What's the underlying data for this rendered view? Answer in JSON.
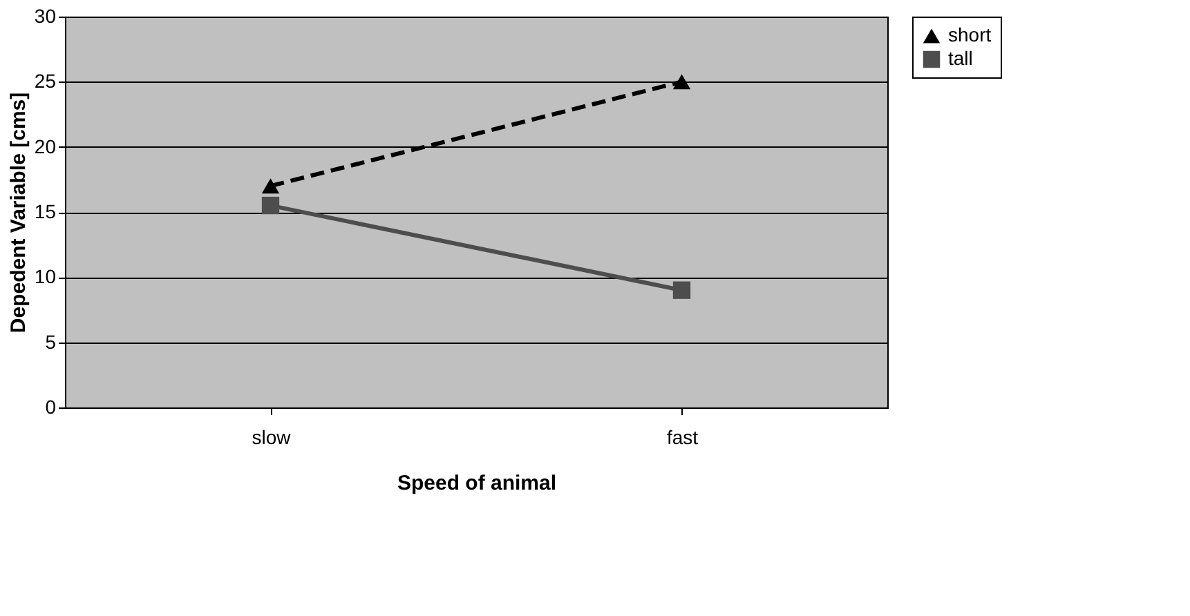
{
  "chart_data": {
    "type": "line",
    "xlabel": "Speed of animal",
    "ylabel": "Depedent Variable [cms]",
    "categories": [
      "slow",
      "fast"
    ],
    "series": [
      {
        "name": "short",
        "color": "#000000",
        "values": [
          17,
          25
        ],
        "marker": "triangle",
        "line_style": "dashed"
      },
      {
        "name": "tall",
        "color": "#4d4d4d",
        "values": [
          15.5,
          9
        ],
        "marker": "square",
        "line_style": "solid"
      }
    ],
    "ylim": [
      0,
      30
    ],
    "yticks": [
      0,
      5,
      10,
      15,
      20,
      25,
      30
    ],
    "grid": "y",
    "legend": "right"
  }
}
